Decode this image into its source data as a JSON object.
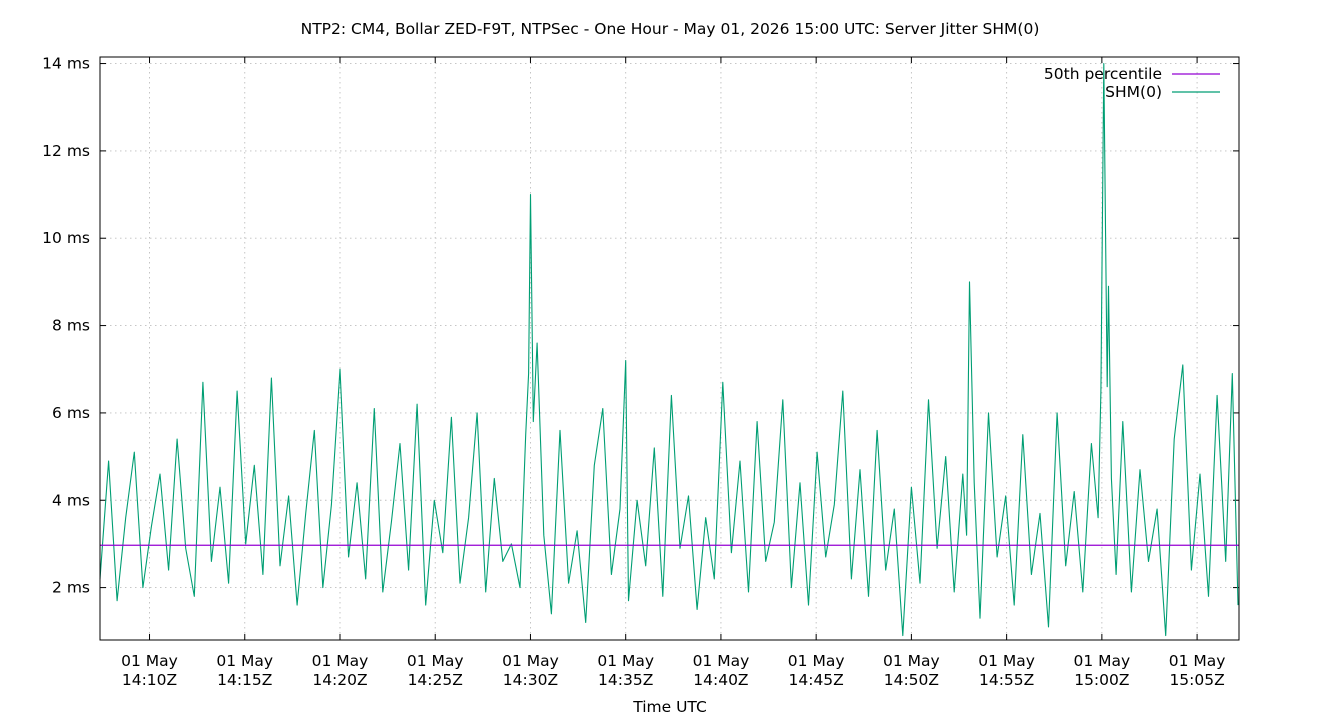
{
  "chart_data": {
    "type": "line",
    "title": "NTP2: CM4, Bollar ZED-F9T, NTPSec - One Hour - May 01, 2026 15:00 UTC: Server Jitter SHM(0)",
    "xlabel": "Time UTC",
    "ylabel": "",
    "xlim_minutes": [
      -65.3,
      -5.5
    ],
    "ylim": [
      0.8,
      14.15
    ],
    "y_ticks": [
      {
        "value": 2,
        "label": "2 ms"
      },
      {
        "value": 4,
        "label": "4 ms"
      },
      {
        "value": 6,
        "label": "6 ms"
      },
      {
        "value": 8,
        "label": "8 ms"
      },
      {
        "value": 10,
        "label": "10 ms"
      },
      {
        "value": 12,
        "label": "12 ms"
      },
      {
        "value": 14,
        "label": "14 ms"
      }
    ],
    "x_ticks": [
      {
        "value": -62.7,
        "line1": "01 May",
        "line2": "14:10Z"
      },
      {
        "value": -57.7,
        "line1": "01 May",
        "line2": "14:15Z"
      },
      {
        "value": -52.7,
        "line1": "01 May",
        "line2": "14:20Z"
      },
      {
        "value": -47.7,
        "line1": "01 May",
        "line2": "14:25Z"
      },
      {
        "value": -42.7,
        "line1": "01 May",
        "line2": "14:30Z"
      },
      {
        "value": -37.7,
        "line1": "01 May",
        "line2": "14:35Z"
      },
      {
        "value": -32.7,
        "line1": "01 May",
        "line2": "14:40Z"
      },
      {
        "value": -27.7,
        "line1": "01 May",
        "line2": "14:45Z"
      },
      {
        "value": -22.7,
        "line1": "01 May",
        "line2": "14:50Z"
      },
      {
        "value": -17.7,
        "line1": "01 May",
        "line2": "14:55Z"
      },
      {
        "value": -12.7,
        "line1": "01 May",
        "line2": "15:00Z"
      },
      {
        "value": -7.7,
        "line1": "01 May",
        "line2": "15:05Z"
      }
    ],
    "grid": true,
    "legend_position": "top-right",
    "series": [
      {
        "name": "50th percentile",
        "color": "#9400d3",
        "value": 2.97
      },
      {
        "name": "SHM(0)",
        "color": "#009e73",
        "x": [
          -65.3,
          -64.85,
          -64.4,
          -63.95,
          -63.5,
          -63.05,
          -62.6,
          -62.15,
          -61.7,
          -61.25,
          -60.8,
          -60.35,
          -59.9,
          -59.45,
          -59.0,
          -58.55,
          -58.1,
          -57.65,
          -57.2,
          -56.75,
          -56.3,
          -55.85,
          -55.4,
          -54.95,
          -54.5,
          -54.05,
          -53.6,
          -53.15,
          -52.7,
          -52.25,
          -51.8,
          -51.35,
          -50.9,
          -50.45,
          -50.0,
          -49.55,
          -49.1,
          -48.65,
          -48.2,
          -47.75,
          -47.3,
          -46.85,
          -46.4,
          -45.95,
          -45.5,
          -45.05,
          -44.6,
          -44.15,
          -43.7,
          -43.25,
          -42.95,
          -42.8,
          -42.7,
          -42.55,
          -42.35,
          -42.0,
          -41.6,
          -41.15,
          -40.7,
          -40.25,
          -39.8,
          -39.35,
          -38.9,
          -38.45,
          -38.0,
          -37.7,
          -37.55,
          -37.1,
          -36.65,
          -36.2,
          -35.75,
          -35.3,
          -34.85,
          -34.4,
          -33.95,
          -33.5,
          -33.05,
          -32.6,
          -32.15,
          -31.7,
          -31.25,
          -30.8,
          -30.35,
          -29.9,
          -29.45,
          -29.0,
          -28.55,
          -28.1,
          -27.65,
          -27.2,
          -26.75,
          -26.3,
          -25.85,
          -25.4,
          -24.95,
          -24.5,
          -24.05,
          -23.6,
          -23.15,
          -22.7,
          -22.25,
          -21.8,
          -21.35,
          -20.9,
          -20.45,
          -20.0,
          -19.8,
          -19.65,
          -19.4,
          -19.1,
          -18.65,
          -18.2,
          -17.75,
          -17.3,
          -16.85,
          -16.4,
          -15.95,
          -15.5,
          -15.05,
          -14.6,
          -14.15,
          -13.7,
          -13.25,
          -12.9,
          -12.75,
          -12.6,
          -12.5,
          -12.42,
          -12.35,
          -12.2,
          -11.95,
          -11.6,
          -11.15,
          -10.7,
          -10.25,
          -9.8,
          -9.35,
          -8.9,
          -8.45,
          -8.0,
          -7.55,
          -7.1,
          -6.65,
          -6.2,
          -5.85,
          -5.55
        ],
        "y": [
          2.2,
          4.9,
          1.7,
          3.6,
          5.1,
          2.0,
          3.4,
          4.6,
          2.4,
          5.4,
          2.9,
          1.8,
          6.7,
          2.6,
          4.3,
          2.1,
          6.5,
          3.0,
          4.8,
          2.3,
          6.8,
          2.5,
          4.1,
          1.6,
          3.7,
          5.6,
          2.0,
          3.9,
          7.0,
          2.7,
          4.4,
          2.2,
          6.1,
          1.9,
          3.5,
          5.3,
          2.4,
          6.2,
          1.6,
          4.0,
          2.8,
          5.9,
          2.1,
          3.6,
          6.0,
          1.9,
          4.5,
          2.6,
          3.0,
          2.0,
          5.5,
          6.9,
          11.0,
          5.8,
          7.6,
          3.2,
          1.4,
          5.6,
          2.1,
          3.3,
          1.2,
          4.8,
          6.1,
          2.3,
          3.8,
          7.2,
          1.7,
          4.0,
          2.5,
          5.2,
          1.8,
          6.4,
          2.9,
          4.1,
          1.5,
          3.6,
          2.2,
          6.7,
          2.8,
          4.9,
          1.9,
          5.8,
          2.6,
          3.5,
          6.3,
          2.0,
          4.4,
          1.6,
          5.1,
          2.7,
          3.9,
          6.5,
          2.2,
          4.7,
          1.8,
          5.6,
          2.4,
          3.8,
          0.9,
          4.3,
          2.1,
          6.3,
          2.9,
          5.0,
          1.9,
          4.6,
          3.2,
          9.0,
          4.4,
          1.3,
          6.0,
          2.7,
          4.1,
          1.6,
          5.5,
          2.3,
          3.7,
          1.1,
          6.0,
          2.5,
          4.2,
          1.9,
          5.3,
          3.6,
          6.5,
          14.0,
          9.8,
          6.6,
          8.9,
          4.5,
          2.3,
          5.8,
          1.9,
          4.7,
          2.6,
          3.8,
          0.9,
          5.4,
          7.1,
          2.4,
          4.6,
          1.8,
          6.4,
          2.6,
          6.9,
          1.6
        ]
      }
    ]
  }
}
